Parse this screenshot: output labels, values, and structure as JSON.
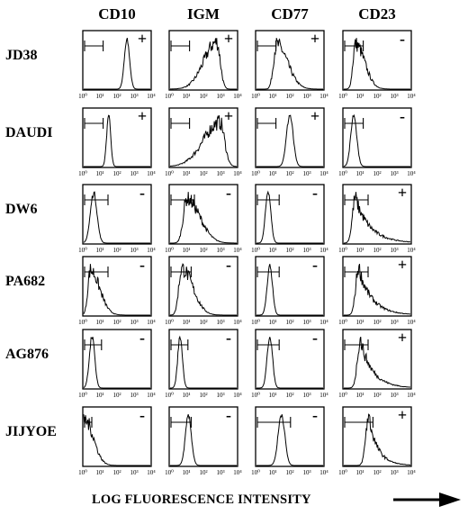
{
  "chart_data": {
    "type": "histogram-grid",
    "columns": [
      "CD10",
      "IGM",
      "CD77",
      "CD23"
    ],
    "rows": [
      "JD38",
      "DAUDI",
      "DW6",
      "PA682",
      "AG876",
      "JIJYOE"
    ],
    "tick_labels": [
      "10⁰",
      "10¹",
      "10²",
      "10³",
      "10⁴"
    ],
    "x_axis_title": "LOG FLUORESCENCE INTENSITY",
    "signs": [
      [
        "+",
        "+",
        "+",
        "-"
      ],
      [
        "+",
        "+",
        "+",
        "-"
      ],
      [
        "-",
        "-",
        "-",
        "+"
      ],
      [
        "-",
        "-",
        "-",
        "+"
      ],
      [
        "-",
        "-",
        "-",
        "+"
      ],
      [
        "-",
        "-",
        "-",
        "+"
      ]
    ],
    "gate_bracket_end_log10": [
      [
        0.7,
        0.7,
        0.7,
        0.7
      ],
      [
        0.7,
        0.7,
        0.7,
        0.7
      ],
      [
        1.0,
        1.0,
        0.9,
        1.0
      ],
      [
        1.0,
        0.8,
        0.9,
        1.0
      ],
      [
        0.6,
        0.6,
        0.9,
        1.0
      ],
      [
        0.0,
        0.8,
        1.6,
        1.3
      ]
    ],
    "histograms": [
      [
        {
          "peak": 2.6,
          "width": 0.16,
          "shape": "narrow"
        },
        {
          "peak": 2.8,
          "width": 0.35,
          "shape": "leftskew"
        },
        {
          "peak": 1.2,
          "width": 0.3,
          "shape": "rightskew"
        },
        {
          "peak": 0.7,
          "width": 0.25,
          "shape": "rightskew"
        }
      ],
      [
        {
          "peak": 1.5,
          "width": 0.12,
          "shape": "narrow"
        },
        {
          "peak": 3.0,
          "width": 0.45,
          "shape": "leftskew"
        },
        {
          "peak": 2.0,
          "width": 0.2,
          "shape": "narrow"
        },
        {
          "peak": 0.6,
          "width": 0.18,
          "shape": "narrow"
        }
      ],
      [
        {
          "peak": 0.6,
          "width": 0.2,
          "shape": "narrow"
        },
        {
          "peak": 1.0,
          "width": 0.35,
          "shape": "rightskew"
        },
        {
          "peak": 0.7,
          "width": 0.16,
          "shape": "narrow"
        },
        {
          "peak": 0.7,
          "width": 0.9,
          "shape": "broadright"
        }
      ],
      [
        {
          "peak": 0.4,
          "width": 0.25,
          "shape": "rightskew"
        },
        {
          "peak": 0.7,
          "width": 0.3,
          "shape": "rightskew"
        },
        {
          "peak": 0.8,
          "width": 0.16,
          "shape": "narrow"
        },
        {
          "peak": 0.9,
          "width": 0.8,
          "shape": "broadright"
        }
      ],
      [
        {
          "peak": 0.5,
          "width": 0.16,
          "shape": "narrow"
        },
        {
          "peak": 0.6,
          "width": 0.14,
          "shape": "narrow"
        },
        {
          "peak": 0.8,
          "width": 0.16,
          "shape": "narrow"
        },
        {
          "peak": 1.0,
          "width": 0.75,
          "shape": "broadright"
        }
      ],
      [
        {
          "peak": 0.1,
          "width": 0.5,
          "shape": "edge"
        },
        {
          "peak": 1.1,
          "width": 0.18,
          "shape": "narrow"
        },
        {
          "peak": 1.5,
          "width": 0.2,
          "shape": "narrow"
        },
        {
          "peak": 1.5,
          "width": 0.55,
          "shape": "broadright"
        }
      ]
    ]
  }
}
